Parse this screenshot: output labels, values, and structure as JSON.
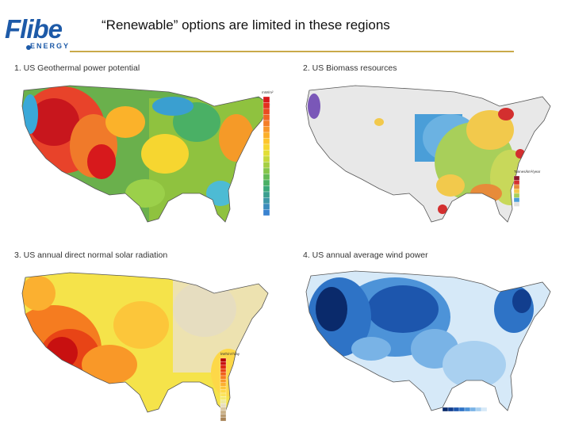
{
  "header": {
    "logo_main": "Flibe",
    "logo_sub": "ENERGY",
    "title": "“Renewable” options are limited in these regions"
  },
  "panels": [
    {
      "label": "1. US Geothermal power potential",
      "legend_title": "mW/m²",
      "legend_colors": [
        "#d7191c",
        "#e3301f",
        "#ea4a22",
        "#f06424",
        "#f47d26",
        "#f89627",
        "#fbae29",
        "#fdc52c",
        "#f6d630",
        "#e2de36",
        "#c6d93b",
        "#a5cf43",
        "#84c54b",
        "#63ba55",
        "#4ab065",
        "#3aa879",
        "#3b9f8f",
        "#3c96a6",
        "#3b8cbc",
        "#3a82d0"
      ]
    },
    {
      "label": "2. US Biomass resources",
      "legend_title": "Tonnes/km²/year",
      "legend_colors": [
        "#8b1a2b",
        "#d32f2f",
        "#e78b3a",
        "#f2c94c",
        "#a8cf5a",
        "#4a9ed8",
        "#e0e0e0"
      ]
    },
    {
      "label": "3. US annual direct normal solar radiation",
      "legend_title": "kWh/m²/day",
      "legend_colors": [
        "#b30000",
        "#c81010",
        "#dc2a12",
        "#e84416",
        "#f0601b",
        "#f57c20",
        "#f99828",
        "#fbb030",
        "#fcc63a",
        "#fdd848",
        "#fbe45a",
        "#f5ea6e",
        "#ece8a0",
        "#e6ddc0",
        "#d9c7a0",
        "#c9b088",
        "#b89a70",
        "#a88458"
      ]
    },
    {
      "label": "4. US annual average wind power",
      "legend_title": "",
      "legend_colors": [
        "#0a2a6b",
        "#123e8e",
        "#1d56ad",
        "#2e73c6",
        "#4d93d8",
        "#79b3e6",
        "#a9d0f0",
        "#d6e9f8"
      ]
    }
  ]
}
